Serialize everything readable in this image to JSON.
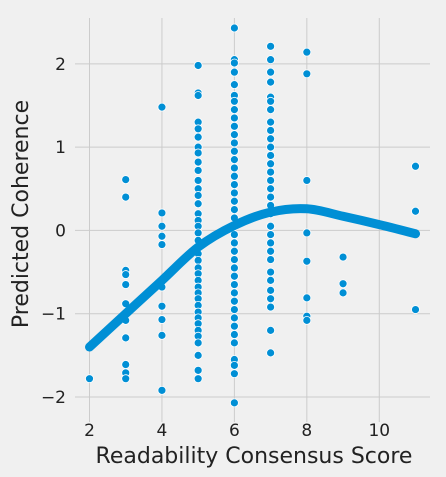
{
  "chart_data": {
    "type": "scatter",
    "title": "",
    "xlabel": "Readability Consensus Score",
    "ylabel": "Predicted Coherence",
    "xlim": [
      1.6,
      11.4
    ],
    "ylim": [
      -2.3,
      2.55
    ],
    "xticks": [
      2,
      4,
      6,
      8,
      10
    ],
    "yticks": [
      -2,
      -1,
      0,
      1,
      2
    ],
    "tick_labels_x": [
      "2",
      "4",
      "6",
      "8",
      "10"
    ],
    "tick_labels_y": [
      "−2",
      "−1",
      "0",
      "1",
      "2"
    ],
    "grid": true,
    "colors": {
      "points": "#008fd5",
      "fit_line": "#008fd5",
      "background": "#f0f0f0",
      "grid": "#cbcbcb"
    },
    "series": [
      {
        "kind": "scatter",
        "points": [
          [
            2,
            -1.78
          ],
          [
            3,
            0.61
          ],
          [
            3,
            0.4
          ],
          [
            3,
            -0.48
          ],
          [
            3,
            -0.53
          ],
          [
            3,
            -0.65
          ],
          [
            3,
            -0.88
          ],
          [
            3,
            -1.08
          ],
          [
            3,
            -1.29
          ],
          [
            3,
            -1.61
          ],
          [
            3,
            -1.71
          ],
          [
            3,
            -1.78
          ],
          [
            4,
            1.48
          ],
          [
            4,
            0.21
          ],
          [
            4,
            0.05
          ],
          [
            4,
            -0.07
          ],
          [
            4,
            -0.17
          ],
          [
            4,
            -0.62
          ],
          [
            4,
            -0.68
          ],
          [
            4,
            -0.91
          ],
          [
            4,
            -1.07
          ],
          [
            4,
            -1.26
          ],
          [
            4,
            -1.92
          ],
          [
            5,
            1.98
          ],
          [
            5,
            1.65
          ],
          [
            5,
            1.62
          ],
          [
            5,
            1.3
          ],
          [
            5,
            1.22
          ],
          [
            5,
            1.12
          ],
          [
            5,
            1.0
          ],
          [
            5,
            0.93
          ],
          [
            5,
            0.82
          ],
          [
            5,
            0.72
          ],
          [
            5,
            0.6
          ],
          [
            5,
            0.5
          ],
          [
            5,
            0.42
          ],
          [
            5,
            0.32
          ],
          [
            5,
            0.2
          ],
          [
            5,
            0.12
          ],
          [
            5,
            0.05
          ],
          [
            5,
            -0.03
          ],
          [
            5,
            -0.12
          ],
          [
            5,
            -0.2
          ],
          [
            5,
            -0.28
          ],
          [
            5,
            -0.36
          ],
          [
            5,
            -0.45
          ],
          [
            5,
            -0.52
          ],
          [
            5,
            -0.6
          ],
          [
            5,
            -0.68
          ],
          [
            5,
            -0.75
          ],
          [
            5,
            -0.82
          ],
          [
            5,
            -0.9
          ],
          [
            5,
            -0.98
          ],
          [
            5,
            -1.05
          ],
          [
            5,
            -1.12
          ],
          [
            5,
            -1.2
          ],
          [
            5,
            -1.27
          ],
          [
            5,
            -1.35
          ],
          [
            5,
            -1.5
          ],
          [
            5,
            -1.68
          ],
          [
            5,
            -1.78
          ],
          [
            6,
            2.43
          ],
          [
            6,
            2.05
          ],
          [
            6,
            2.01
          ],
          [
            6,
            1.9
          ],
          [
            6,
            1.75
          ],
          [
            6,
            1.62
          ],
          [
            6,
            1.55
          ],
          [
            6,
            1.45
          ],
          [
            6,
            1.35
          ],
          [
            6,
            1.25
          ],
          [
            6,
            1.15
          ],
          [
            6,
            1.05
          ],
          [
            6,
            0.95
          ],
          [
            6,
            0.85
          ],
          [
            6,
            0.75
          ],
          [
            6,
            0.65
          ],
          [
            6,
            0.55
          ],
          [
            6,
            0.45
          ],
          [
            6,
            0.35
          ],
          [
            6,
            0.25
          ],
          [
            6,
            0.15
          ],
          [
            6,
            0.05
          ],
          [
            6,
            -0.05
          ],
          [
            6,
            -0.15
          ],
          [
            6,
            -0.25
          ],
          [
            6,
            -0.35
          ],
          [
            6,
            -0.45
          ],
          [
            6,
            -0.55
          ],
          [
            6,
            -0.65
          ],
          [
            6,
            -0.75
          ],
          [
            6,
            -0.85
          ],
          [
            6,
            -0.95
          ],
          [
            6,
            -1.05
          ],
          [
            6,
            -1.15
          ],
          [
            6,
            -1.25
          ],
          [
            6,
            -1.35
          ],
          [
            6,
            -1.55
          ],
          [
            6,
            -1.62
          ],
          [
            6,
            -1.72
          ],
          [
            6,
            -2.07
          ],
          [
            7,
            2.21
          ],
          [
            7,
            2.05
          ],
          [
            7,
            1.9
          ],
          [
            7,
            1.78
          ],
          [
            7,
            1.6
          ],
          [
            7,
            1.55
          ],
          [
            7,
            1.45
          ],
          [
            7,
            1.3
          ],
          [
            7,
            1.2
          ],
          [
            7,
            1.1
          ],
          [
            7,
            1.0
          ],
          [
            7,
            0.9
          ],
          [
            7,
            0.8
          ],
          [
            7,
            0.7
          ],
          [
            7,
            0.6
          ],
          [
            7,
            0.5
          ],
          [
            7,
            0.4
          ],
          [
            7,
            0.3
          ],
          [
            7,
            0.2
          ],
          [
            7,
            0.05
          ],
          [
            7,
            -0.05
          ],
          [
            7,
            -0.15
          ],
          [
            7,
            -0.25
          ],
          [
            7,
            -0.35
          ],
          [
            7,
            -0.5
          ],
          [
            7,
            -0.6
          ],
          [
            7,
            -0.72
          ],
          [
            7,
            -0.82
          ],
          [
            7,
            -0.92
          ],
          [
            7,
            -1.2
          ],
          [
            7,
            -1.47
          ],
          [
            8,
            2.14
          ],
          [
            8,
            1.88
          ],
          [
            8,
            0.6
          ],
          [
            8,
            -0.03
          ],
          [
            8,
            -0.37
          ],
          [
            8,
            -0.81
          ],
          [
            8,
            -1.03
          ],
          [
            8,
            -1.08
          ],
          [
            9,
            -0.32
          ],
          [
            9,
            -0.64
          ],
          [
            9,
            -0.75
          ],
          [
            11,
            0.77
          ],
          [
            11,
            0.23
          ],
          [
            11,
            -0.95
          ]
        ]
      },
      {
        "kind": "line",
        "points": [
          [
            2,
            -1.4
          ],
          [
            3,
            -1.0
          ],
          [
            4,
            -0.6
          ],
          [
            5,
            -0.2
          ],
          [
            6,
            0.06
          ],
          [
            7,
            0.22
          ],
          [
            8,
            0.26
          ],
          [
            9,
            0.17
          ],
          [
            10,
            0.07
          ],
          [
            11,
            -0.04
          ]
        ]
      }
    ]
  }
}
